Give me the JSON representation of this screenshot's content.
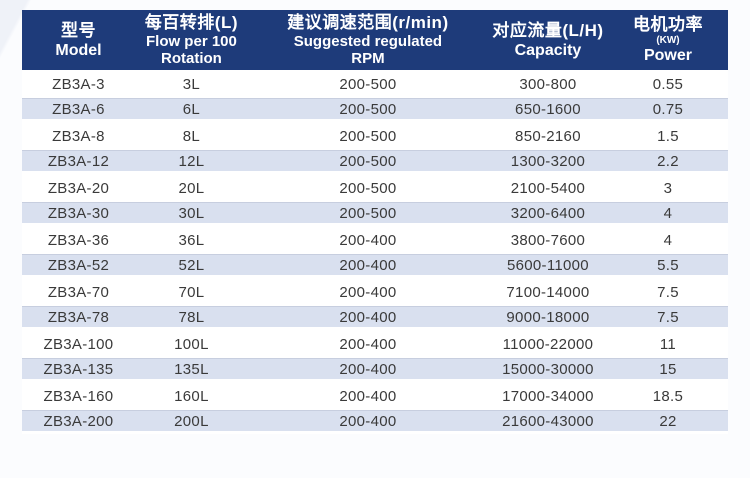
{
  "colors": {
    "header_bg": "#1e3b7a",
    "header_text": "#ffffff",
    "row_bg": "#ffffff",
    "row_alt_bg": "#d9e0ef",
    "body_text": "#3a3a3a"
  },
  "table": {
    "headers": [
      {
        "lines": [
          "型号",
          "Model"
        ]
      },
      {
        "lines": [
          "每百转排(L)",
          "Flow per 100",
          "Rotation"
        ]
      },
      {
        "lines": [
          "建议调速范围(r/min)",
          "Suggested regulated",
          "RPM"
        ]
      },
      {
        "lines": [
          "对应流量(L/H)",
          "Capacity"
        ]
      },
      {
        "lines": [
          "电机功率",
          "(KW)",
          "Power"
        ]
      }
    ],
    "rows": [
      [
        "ZB3A-3",
        "3L",
        "200-500",
        "300-800",
        "0.55"
      ],
      [
        "ZB3A-6",
        "6L",
        "200-500",
        "650-1600",
        "0.75"
      ],
      [
        "ZB3A-8",
        "8L",
        "200-500",
        "850-2160",
        "1.5"
      ],
      [
        "ZB3A-12",
        "12L",
        "200-500",
        "1300-3200",
        "2.2"
      ],
      [
        "ZB3A-20",
        "20L",
        "200-500",
        "2100-5400",
        "3"
      ],
      [
        "ZB3A-30",
        "30L",
        "200-500",
        "3200-6400",
        "4"
      ],
      [
        "ZB3A-36",
        "36L",
        "200-400",
        "3800-7600",
        "4"
      ],
      [
        "ZB3A-52",
        "52L",
        "200-400",
        "5600-11000",
        "5.5"
      ],
      [
        "ZB3A-70",
        "70L",
        "200-400",
        "7100-14000",
        "7.5"
      ],
      [
        "ZB3A-78",
        "78L",
        "200-400",
        "9000-18000",
        "7.5"
      ],
      [
        "ZB3A-100",
        "100L",
        "200-400",
        "11000-22000",
        "11"
      ],
      [
        "ZB3A-135",
        "135L",
        "200-400",
        "15000-30000",
        "15"
      ],
      [
        "ZB3A-160",
        "160L",
        "200-400",
        "17000-34000",
        "18.5"
      ],
      [
        "ZB3A-200",
        "200L",
        "200-400",
        "21600-43000",
        "22"
      ]
    ]
  },
  "chart_data": {
    "type": "table",
    "title": "ZB3A pump model specifications",
    "columns": [
      "型号 Model",
      "每百转排(L) Flow per 100 Rotation",
      "建议调速范围(r/min) Suggested regulated RPM",
      "对应流量(L/H) Capacity",
      "电机功率(KW) Power"
    ],
    "rows": [
      [
        "ZB3A-3",
        "3L",
        "200-500",
        "300-800",
        "0.55"
      ],
      [
        "ZB3A-6",
        "6L",
        "200-500",
        "650-1600",
        "0.75"
      ],
      [
        "ZB3A-8",
        "8L",
        "200-500",
        "850-2160",
        "1.5"
      ],
      [
        "ZB3A-12",
        "12L",
        "200-500",
        "1300-3200",
        "2.2"
      ],
      [
        "ZB3A-20",
        "20L",
        "200-500",
        "2100-5400",
        "3"
      ],
      [
        "ZB3A-30",
        "30L",
        "200-500",
        "3200-6400",
        "4"
      ],
      [
        "ZB3A-36",
        "36L",
        "200-400",
        "3800-7600",
        "4"
      ],
      [
        "ZB3A-52",
        "52L",
        "200-400",
        "5600-11000",
        "5.5"
      ],
      [
        "ZB3A-70",
        "70L",
        "200-400",
        "7100-14000",
        "7.5"
      ],
      [
        "ZB3A-78",
        "78L",
        "200-400",
        "9000-18000",
        "7.5"
      ],
      [
        "ZB3A-100",
        "100L",
        "200-400",
        "11000-22000",
        "11"
      ],
      [
        "ZB3A-135",
        "135L",
        "200-400",
        "15000-30000",
        "15"
      ],
      [
        "ZB3A-160",
        "160L",
        "200-400",
        "17000-34000",
        "18.5"
      ],
      [
        "ZB3A-200",
        "200L",
        "200-400",
        "21600-43000",
        "22"
      ]
    ]
  }
}
